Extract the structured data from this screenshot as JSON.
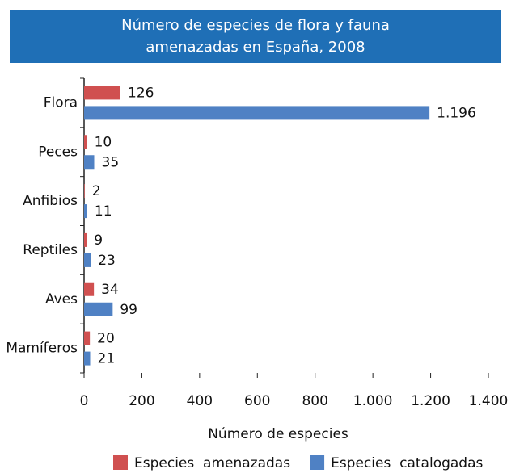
{
  "chart_data": {
    "type": "hbar",
    "title": "Número de especies de flora y fauna amenazadas en España, 2008",
    "categories": [
      "Flora",
      "Peces",
      "Anfibios",
      "Reptiles",
      "Aves",
      "Mamíferos"
    ],
    "series": [
      {
        "name": "Especies  amenazadas",
        "color": "#d05050",
        "values": [
          126,
          10,
          2,
          9,
          34,
          20
        ]
      },
      {
        "name": "Especies  catalogadas",
        "color": "#4f81c4",
        "values": [
          1196,
          35,
          11,
          23,
          99,
          21
        ],
        "value_labels": [
          "1.196",
          "35",
          "11",
          "23",
          "99",
          "21"
        ]
      }
    ],
    "xlabel": "Número de especies",
    "xlim": [
      0,
      1400
    ],
    "xticks": [
      0,
      200,
      400,
      600,
      800,
      {
        "value": 1000,
        "label": "1.000"
      },
      {
        "value": 1200,
        "label": "1.200"
      },
      {
        "value": 1400,
        "label": "1.400"
      }
    ]
  }
}
